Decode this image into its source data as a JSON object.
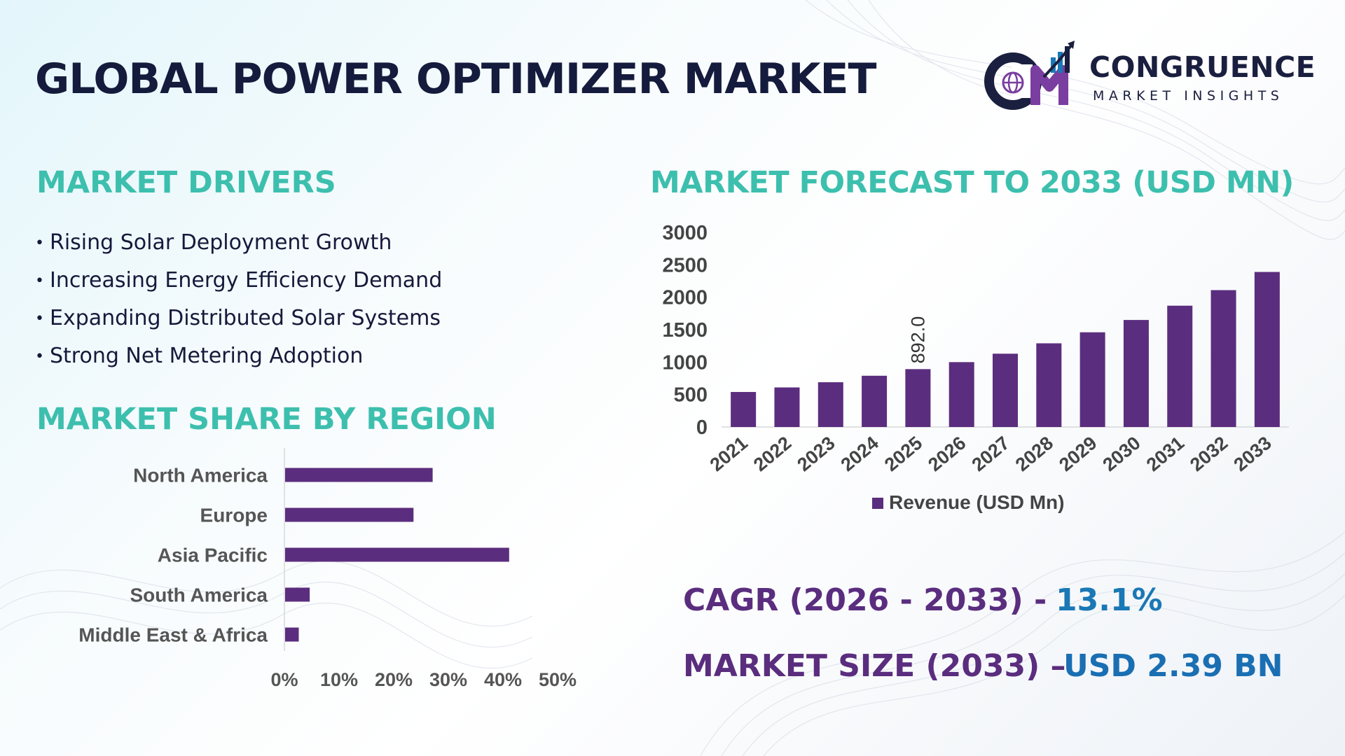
{
  "header": {
    "title": "GLOBAL POWER OPTIMIZER MARKET"
  },
  "logo": {
    "name": "CONGRUENCE",
    "tagline": "MARKET INSIGHTS",
    "mark_text": "CM"
  },
  "drivers": {
    "heading": "MARKET DRIVERS",
    "bullet": "•",
    "items": [
      "Rising Solar Deployment Growth",
      "Increasing Energy Efficiency Demand",
      "Expanding Distributed Solar Systems",
      "Strong Net Metering Adoption"
    ]
  },
  "region": {
    "heading": "MARKET SHARE BY REGION"
  },
  "forecast": {
    "heading": "MARKET FORECAST TO 2033 (USD MN)"
  },
  "kpis": {
    "cagr_label": "CAGR (2026 - 2033) -",
    "cagr_value": "13.1%",
    "size_label": "MARKET SIZE (2033) –",
    "size_value": "USD 2.39 BN"
  },
  "colors": {
    "bar": "#5b2d7e",
    "heading": "#3dbfae",
    "title": "#141b3c",
    "kpi_label": "#5a2d7e",
    "kpi_value": "#1a78b5",
    "axis_text": "#444444"
  },
  "chart_data": [
    {
      "type": "bar",
      "orientation": "horizontal",
      "categories": [
        "North America",
        "Europe",
        "Asia Pacific",
        "South America",
        "Middle East & Africa"
      ],
      "values": [
        27,
        23.5,
        41,
        4.5,
        2.5
      ],
      "unit": "%",
      "xlim": [
        0,
        50
      ],
      "xticks": [
        "0%",
        "10%",
        "20%",
        "30%",
        "40%",
        "50%"
      ],
      "grid": false,
      "legend": "none"
    },
    {
      "type": "bar",
      "orientation": "vertical",
      "categories": [
        "2021",
        "2022",
        "2023",
        "2024",
        "2025",
        "2026",
        "2027",
        "2028",
        "2029",
        "2030",
        "2031",
        "2032",
        "2033"
      ],
      "series": [
        {
          "name": "Revenue (USD Mn)",
          "values": [
            540,
            610,
            690,
            790,
            892,
            1000,
            1130,
            1290,
            1460,
            1650,
            1870,
            2110,
            2390
          ]
        }
      ],
      "data_labels": [
        {
          "category": "2025",
          "text": "892.0"
        }
      ],
      "ylim": [
        0,
        3000
      ],
      "yticks": [
        "0",
        "500",
        "1000",
        "1500",
        "2000",
        "2500",
        "3000"
      ],
      "grid": false,
      "legend": "bottom-center"
    }
  ]
}
